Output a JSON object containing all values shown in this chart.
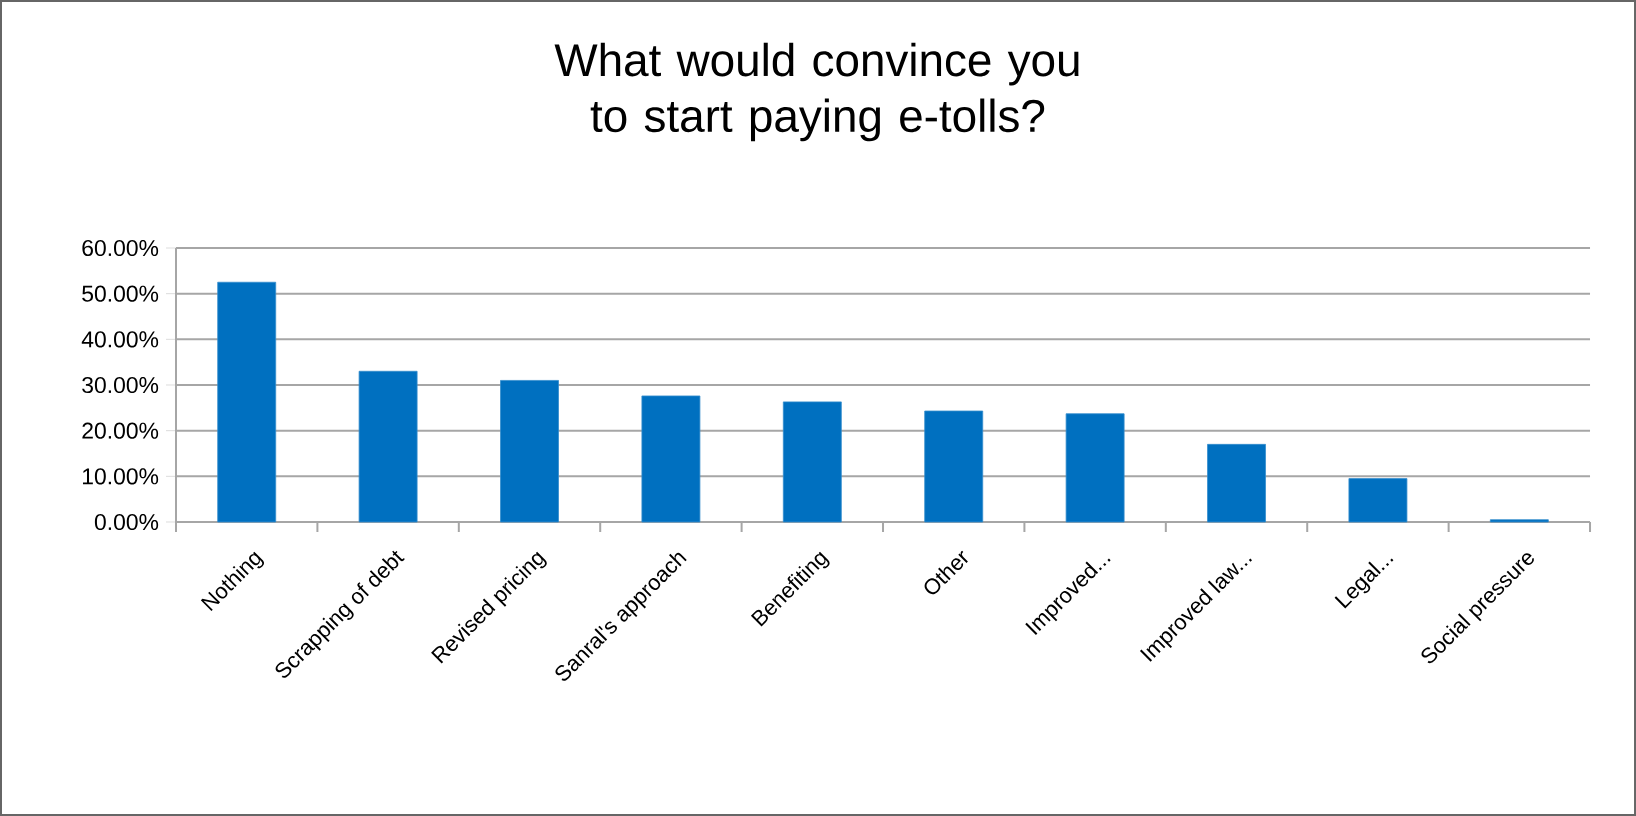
{
  "chart_data": {
    "type": "bar",
    "title": "What would convince you to start paying e-tolls?",
    "categories": [
      "Nothing",
      "Scrapping of debt",
      "Revised pricing",
      "Sanral's approach",
      "Benefiting",
      "Other",
      "Improved...",
      "Improved law...",
      "Legal...",
      "Social pressure"
    ],
    "values": [
      52.5,
      33,
      31,
      27.6,
      26.3,
      24.3,
      23.7,
      17,
      9.5,
      0.5
    ],
    "color": "#0070c0",
    "ylim": [
      0,
      60
    ],
    "yticks": [
      {
        "value": 0,
        "label": "0.00%"
      },
      {
        "value": 10,
        "label": "10.00%"
      },
      {
        "value": 20,
        "label": "20.00%"
      },
      {
        "value": 30,
        "label": "30.00%"
      },
      {
        "value": 40,
        "label": "40.00%"
      },
      {
        "value": 50,
        "label": "50.00%"
      },
      {
        "value": 60,
        "label": "60.00%"
      }
    ],
    "grid": "y"
  }
}
